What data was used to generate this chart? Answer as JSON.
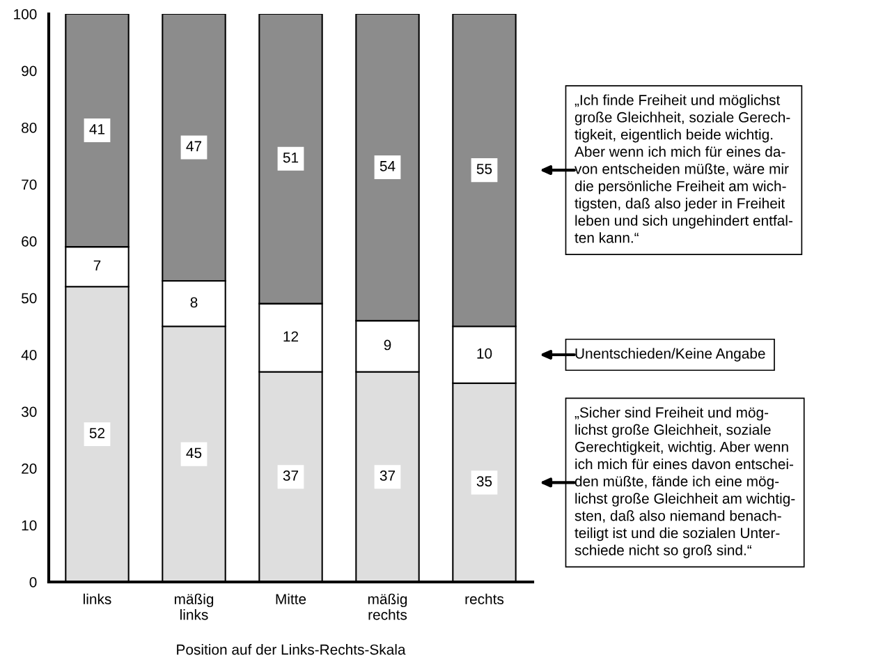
{
  "chart_data": {
    "type": "bar",
    "stacked": true,
    "xlabel": "Position auf der Links-Rechts-Skala",
    "categories": [
      "links",
      "mäßig\nlinks",
      "Mitte",
      "mäßig\nrechts",
      "rechts"
    ],
    "series": [
      {
        "name": "„Sicher sind Freiheit und mög-\nlichst große Gleichheit, soziale\nGerechtigkeit, wichtig. Aber wenn\nich mich für eines davon entschei-\nden müßte, fände ich eine mög-\nlichst große Gleichheit am wichtig-\nsten, daß also niemand benach-\nteiligt ist und die sozialen Unter-\nschiede nicht so groß sind.“",
        "color": "#dedede",
        "values": [
          52,
          45,
          37,
          37,
          35
        ]
      },
      {
        "name": "Unentschieden/Keine Angabe",
        "color": "#ffffff",
        "values": [
          7,
          8,
          12,
          9,
          10
        ]
      },
      {
        "name": "„Ich finde Freiheit und möglichst\ngroße Gleichheit, soziale Gerech-\ntigkeit, eigentlich beide wichtig.\nAber wenn ich mich für eines da-\nvon entscheiden müßte, wäre mir\ndie persönliche Freiheit am wich-\ntigsten, daß also jeder in Freiheit\nleben und sich ungehindert entfal-\nten kann.“",
        "color": "#8c8c8c",
        "values": [
          41,
          47,
          51,
          54,
          55
        ]
      }
    ],
    "ylim": [
      0,
      100
    ],
    "yticks": [
      0,
      10,
      20,
      30,
      40,
      50,
      60,
      70,
      80,
      90,
      100
    ],
    "data_labels": true,
    "grid": false
  }
}
